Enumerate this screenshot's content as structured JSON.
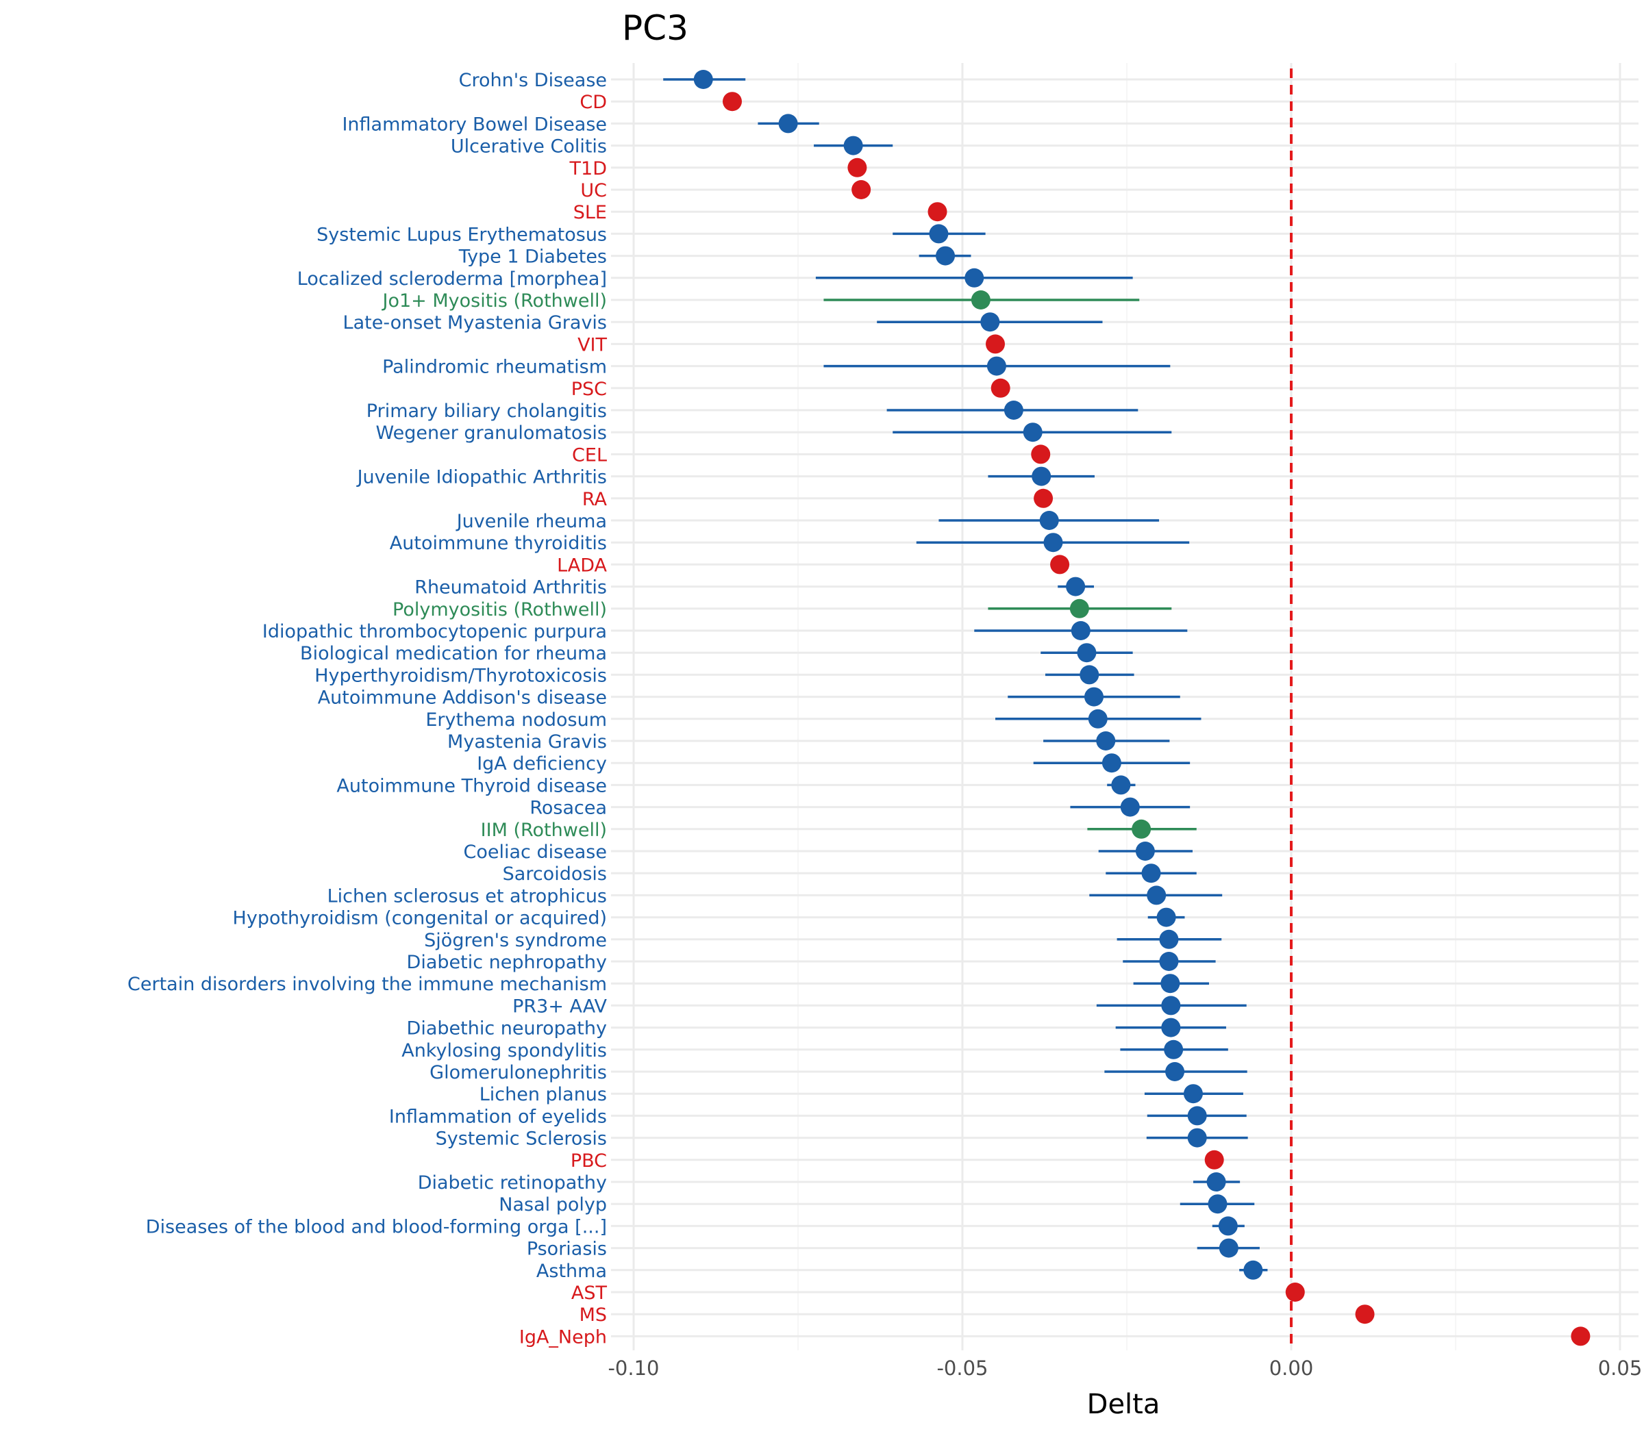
{
  "chart_data": {
    "type": "scatter",
    "title": "PC3",
    "xlabel": "Delta",
    "ylabel": "",
    "xlim": [
      -0.105,
      0.05
    ],
    "x_ticks": [
      -0.1,
      -0.05,
      0.0,
      0.05
    ],
    "x_tick_labels": [
      "-0.10",
      "-0.05",
      "0.00",
      "0.05"
    ],
    "reference_line": {
      "x": 0,
      "style": "dashed",
      "color": "#e41a1c"
    },
    "grid": true,
    "legend": "none",
    "colors": {
      "blue": "#1a5ea8",
      "red": "#d7191c",
      "green": "#2e8b57"
    },
    "points": [
      {
        "label": "Crohn's Disease",
        "value": -0.0894,
        "lo": -0.0955,
        "hi": -0.083,
        "color": "blue"
      },
      {
        "label": "CD",
        "value": -0.085,
        "lo": null,
        "hi": null,
        "color": "red"
      },
      {
        "label": "Inflammatory Bowel Disease",
        "value": -0.0765,
        "lo": -0.0811,
        "hi": -0.0718,
        "color": "blue"
      },
      {
        "label": "Ulcerative Colitis",
        "value": -0.0666,
        "lo": -0.0726,
        "hi": -0.0606,
        "color": "blue"
      },
      {
        "label": "T1D",
        "value": -0.066,
        "lo": null,
        "hi": null,
        "color": "red"
      },
      {
        "label": "UC",
        "value": -0.0654,
        "lo": null,
        "hi": null,
        "color": "red"
      },
      {
        "label": "SLE",
        "value": -0.0538,
        "lo": null,
        "hi": null,
        "color": "red"
      },
      {
        "label": "Systemic Lupus Erythematosus",
        "value": -0.0536,
        "lo": -0.0606,
        "hi": -0.0465,
        "color": "blue"
      },
      {
        "label": "Type 1 Diabetes",
        "value": -0.0526,
        "lo": -0.0566,
        "hi": -0.0487,
        "color": "blue"
      },
      {
        "label": "Localized scleroderma [morphea]",
        "value": -0.0482,
        "lo": -0.0723,
        "hi": -0.0241,
        "color": "blue"
      },
      {
        "label": "Jo1+ Myositis (Rothwell)",
        "value": -0.0472,
        "lo": -0.0711,
        "hi": -0.0231,
        "color": "green"
      },
      {
        "label": "Late-onset Myastenia Gravis",
        "value": -0.0458,
        "lo": -0.063,
        "hi": -0.0287,
        "color": "blue"
      },
      {
        "label": "VIT",
        "value": -0.045,
        "lo": null,
        "hi": null,
        "color": "red"
      },
      {
        "label": "Palindromic rheumatism",
        "value": -0.0448,
        "lo": -0.0711,
        "hi": -0.0184,
        "color": "blue"
      },
      {
        "label": "PSC",
        "value": -0.0442,
        "lo": null,
        "hi": null,
        "color": "red"
      },
      {
        "label": "Primary biliary cholangitis",
        "value": -0.0422,
        "lo": -0.0615,
        "hi": -0.0233,
        "color": "blue"
      },
      {
        "label": "Wegener granulomatosis",
        "value": -0.0393,
        "lo": -0.0606,
        "hi": -0.0182,
        "color": "blue"
      },
      {
        "label": "CEL",
        "value": -0.0381,
        "lo": null,
        "hi": null,
        "color": "red"
      },
      {
        "label": "Juvenile Idiopathic Arthritis",
        "value": -0.038,
        "lo": -0.0461,
        "hi": -0.0299,
        "color": "blue"
      },
      {
        "label": "RA",
        "value": -0.0377,
        "lo": null,
        "hi": null,
        "color": "red"
      },
      {
        "label": "Juvenile rheuma",
        "value": -0.0368,
        "lo": -0.0536,
        "hi": -0.0201,
        "color": "blue"
      },
      {
        "label": "Autoimmune thyroiditis",
        "value": -0.0362,
        "lo": -0.057,
        "hi": -0.0155,
        "color": "blue"
      },
      {
        "label": "LADA",
        "value": -0.0352,
        "lo": null,
        "hi": null,
        "color": "red"
      },
      {
        "label": "Rheumatoid Arthritis",
        "value": -0.0328,
        "lo": -0.0355,
        "hi": -0.03,
        "color": "blue"
      },
      {
        "label": "Polymyositis (Rothwell)",
        "value": -0.0322,
        "lo": -0.0461,
        "hi": -0.0182,
        "color": "green"
      },
      {
        "label": "Idiopathic thrombocytopenic purpura",
        "value": -0.032,
        "lo": -0.0482,
        "hi": -0.0158,
        "color": "blue"
      },
      {
        "label": "Biological medication for rheuma",
        "value": -0.0311,
        "lo": -0.0381,
        "hi": -0.0241,
        "color": "blue"
      },
      {
        "label": "Hyperthyroidism/Thyrotoxicosis",
        "value": -0.0307,
        "lo": -0.0374,
        "hi": -0.0239,
        "color": "blue"
      },
      {
        "label": "Autoimmune Addison's disease",
        "value": -0.03,
        "lo": -0.0431,
        "hi": -0.0169,
        "color": "blue"
      },
      {
        "label": "Erythema nodosum",
        "value": -0.0294,
        "lo": -0.045,
        "hi": -0.0137,
        "color": "blue"
      },
      {
        "label": "Myastenia Gravis",
        "value": -0.0282,
        "lo": -0.0377,
        "hi": -0.0185,
        "color": "blue"
      },
      {
        "label": "IgA deficiency",
        "value": -0.0273,
        "lo": -0.0392,
        "hi": -0.0154,
        "color": "blue"
      },
      {
        "label": "Autoimmune Thyroid disease",
        "value": -0.0259,
        "lo": -0.028,
        "hi": -0.0237,
        "color": "blue"
      },
      {
        "label": "Rosacea",
        "value": -0.0245,
        "lo": -0.0336,
        "hi": -0.0154,
        "color": "blue"
      },
      {
        "label": "IIM (Rothwell)",
        "value": -0.0228,
        "lo": -0.031,
        "hi": -0.0144,
        "color": "green"
      },
      {
        "label": "Coeliac disease",
        "value": -0.0222,
        "lo": -0.0293,
        "hi": -0.015,
        "color": "blue"
      },
      {
        "label": "Sarcoidosis",
        "value": -0.0213,
        "lo": -0.0282,
        "hi": -0.0144,
        "color": "blue"
      },
      {
        "label": "Lichen sclerosus et atrophicus",
        "value": -0.0205,
        "lo": -0.0307,
        "hi": -0.0105,
        "color": "blue"
      },
      {
        "label": "Hypothyroidism (congenital or acquired)",
        "value": -0.019,
        "lo": -0.0218,
        "hi": -0.0162,
        "color": "blue"
      },
      {
        "label": "Sjögren's syndrome",
        "value": -0.0186,
        "lo": -0.0265,
        "hi": -0.0106,
        "color": "blue"
      },
      {
        "label": "Diabetic nephropathy",
        "value": -0.0186,
        "lo": -0.0256,
        "hi": -0.0115,
        "color": "blue"
      },
      {
        "label": "Certain disorders involving the immune mechanism",
        "value": -0.0184,
        "lo": -0.024,
        "hi": -0.0125,
        "color": "blue"
      },
      {
        "label": "PR3+ AAV",
        "value": -0.0183,
        "lo": -0.0296,
        "hi": -0.0068,
        "color": "blue"
      },
      {
        "label": "Diabethic neuropathy",
        "value": -0.0183,
        "lo": -0.0267,
        "hi": -0.0099,
        "color": "blue"
      },
      {
        "label": "Ankylosing spondylitis",
        "value": -0.0179,
        "lo": -0.026,
        "hi": -0.0096,
        "color": "blue"
      },
      {
        "label": "Glomerulonephritis",
        "value": -0.0177,
        "lo": -0.0284,
        "hi": -0.0067,
        "color": "blue"
      },
      {
        "label": "Lichen planus",
        "value": -0.0149,
        "lo": -0.0223,
        "hi": -0.0073,
        "color": "blue"
      },
      {
        "label": "Inflammation of eyelids",
        "value": -0.0143,
        "lo": -0.0219,
        "hi": -0.0068,
        "color": "blue"
      },
      {
        "label": "Systemic Sclerosis",
        "value": -0.0143,
        "lo": -0.022,
        "hi": -0.0066,
        "color": "blue"
      },
      {
        "label": "PBC",
        "value": -0.0117,
        "lo": null,
        "hi": null,
        "color": "red"
      },
      {
        "label": "Diabetic retinopathy",
        "value": -0.0114,
        "lo": -0.0149,
        "hi": -0.0078,
        "color": "blue"
      },
      {
        "label": "Nasal polyp",
        "value": -0.0112,
        "lo": -0.0169,
        "hi": -0.0056,
        "color": "blue"
      },
      {
        "label": "Diseases of the blood and blood-forming orga [...]",
        "value": -0.0096,
        "lo": -0.012,
        "hi": -0.0071,
        "color": "blue"
      },
      {
        "label": "Psoriasis",
        "value": -0.0095,
        "lo": -0.0143,
        "hi": -0.0048,
        "color": "blue"
      },
      {
        "label": "Asthma",
        "value": -0.0058,
        "lo": -0.0079,
        "hi": -0.0036,
        "color": "blue"
      },
      {
        "label": "AST",
        "value": 0.0006,
        "lo": null,
        "hi": null,
        "color": "red"
      },
      {
        "label": "MS",
        "value": 0.0112,
        "lo": null,
        "hi": null,
        "color": "red"
      },
      {
        "label": "IgA_Neph",
        "value": 0.044,
        "lo": null,
        "hi": null,
        "color": "red"
      }
    ]
  }
}
